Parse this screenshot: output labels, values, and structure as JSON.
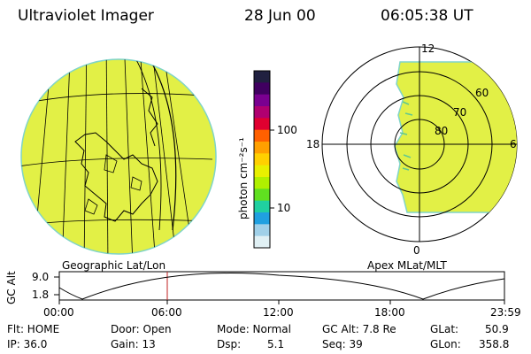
{
  "header": {
    "title": "Ultraviolet Imager",
    "date": "28 Jun 00",
    "time": "06:05:38 UT"
  },
  "colorbar": {
    "unit_label": "photon cm⁻²s⁻¹",
    "ticks": [
      "100",
      "10"
    ],
    "colors": [
      "#202040",
      "#400060",
      "#7a0090",
      "#b00070",
      "#e00030",
      "#ff6000",
      "#ffa000",
      "#ffd000",
      "#e8f000",
      "#b0f000",
      "#60e020",
      "#20d0a0",
      "#20a0e0",
      "#a0d0e8",
      "#e0f0f4"
    ]
  },
  "geographic_panel": {
    "label": "Geographic Lat/Lon",
    "fill_color": "#e2f046"
  },
  "polar_panel": {
    "label": "Apex MLat/MLT",
    "mlt_labels": {
      "top": "12",
      "right": "6",
      "left": "18",
      "bottom": "0"
    },
    "lat_labels": [
      "60",
      "70",
      "80"
    ]
  },
  "altitude_plot": {
    "ylabel": "GC Alt",
    "ymax_label": "9.0",
    "ymin_label": "1.8",
    "x_ticks": [
      "00:00",
      "06:00",
      "12:00",
      "18:00",
      "23:59"
    ],
    "marker_color": "#c02020"
  },
  "status": {
    "flt": "Flt: HOME",
    "ip": "IP: 36.0",
    "door": "Door: Open",
    "gain": "Gain: 13",
    "mode": "Mode: Normal",
    "dsp_label": "Dsp:",
    "dsp_value": "5.1",
    "gc_alt": "GC Alt: 7.8 Re",
    "seq": "Seq: 39",
    "glat_label": "GLat:",
    "glat_value": "50.9",
    "glon_label": "GLon:",
    "glon_value": "358.8"
  }
}
